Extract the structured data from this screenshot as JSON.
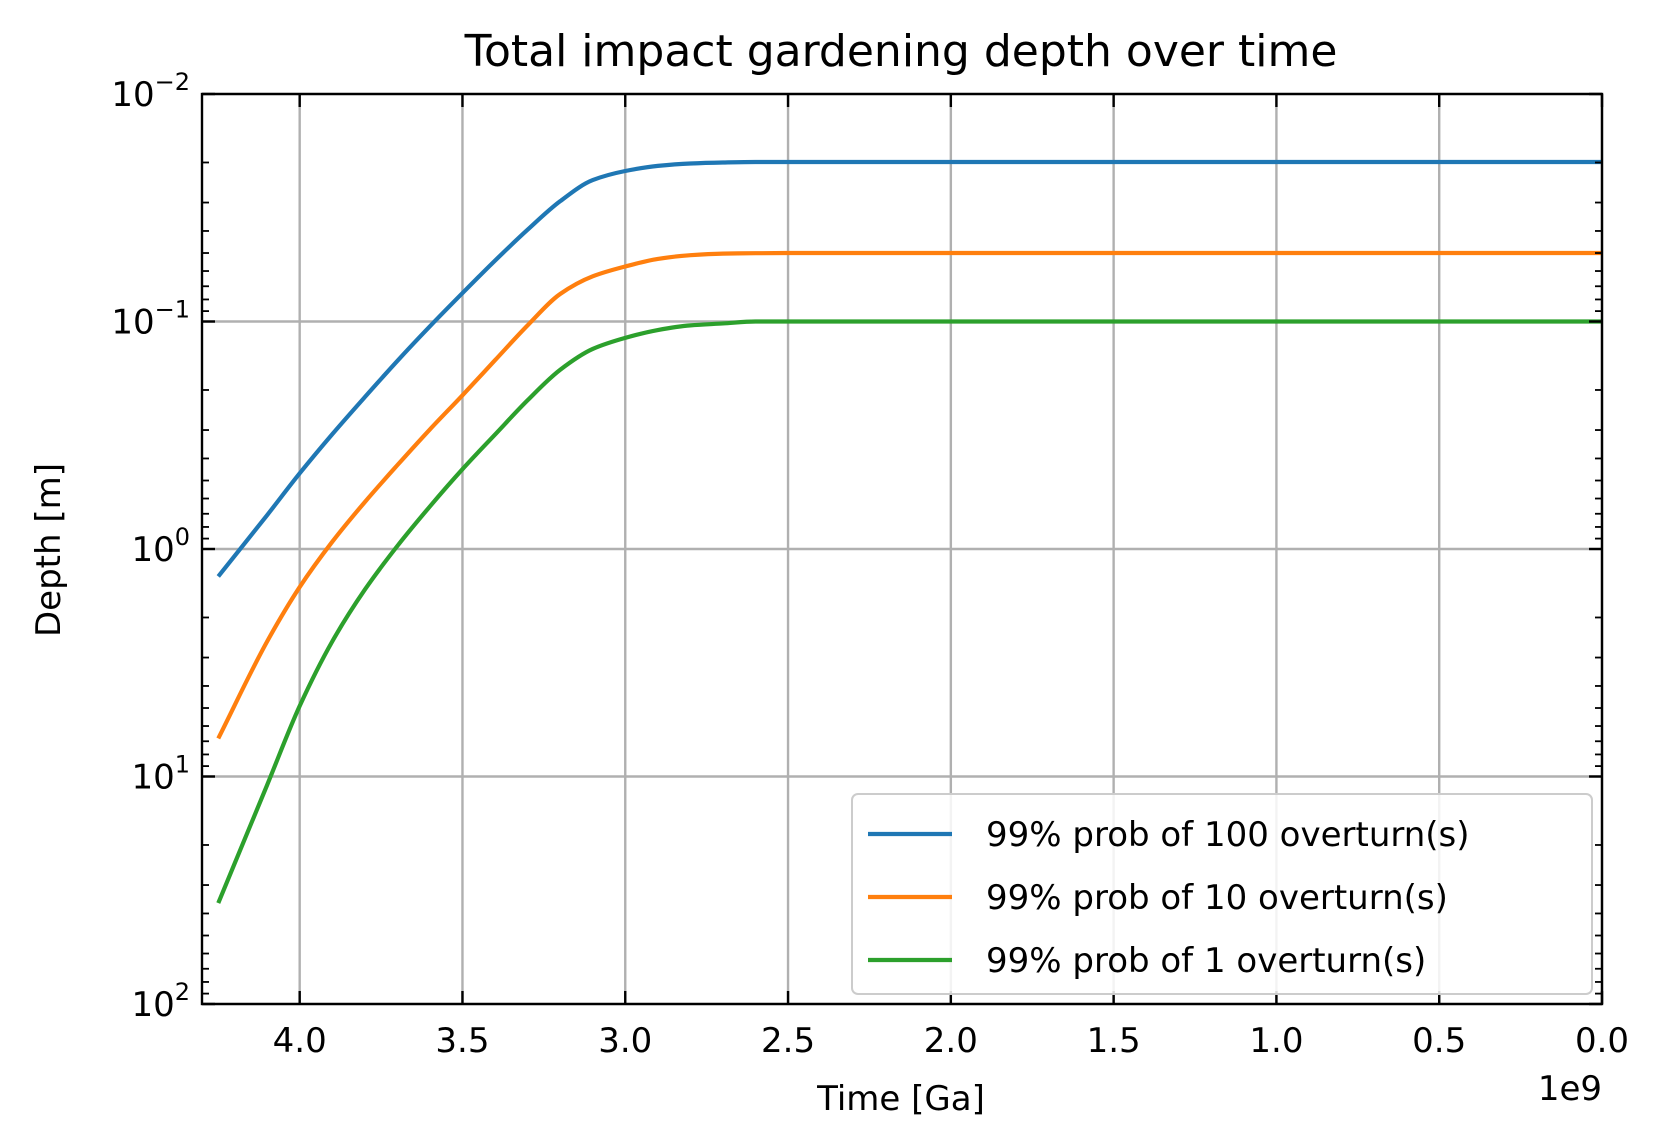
{
  "chart_data": {
    "type": "line",
    "title": "Total impact gardening depth over time",
    "xlabel": "Time [Ga]",
    "ylabel": "Depth [m]",
    "x_offset_text": "1e9",
    "x_scale": "linear",
    "x_inverted": true,
    "xlim": [
      4300000000.0,
      0
    ],
    "x_ticks": [
      {
        "value": 4000000000.0,
        "label": "4.0"
      },
      {
        "value": 3500000000.0,
        "label": "3.5"
      },
      {
        "value": 3000000000.0,
        "label": "3.0"
      },
      {
        "value": 2500000000.0,
        "label": "2.5"
      },
      {
        "value": 2000000000.0,
        "label": "2.0"
      },
      {
        "value": 1500000000.0,
        "label": "1.5"
      },
      {
        "value": 1000000000.0,
        "label": "1.0"
      },
      {
        "value": 500000000.0,
        "label": "0.5"
      },
      {
        "value": 0,
        "label": "0.0"
      }
    ],
    "y_scale": "log",
    "y_inverted": true,
    "ylim": [
      100,
      0.01
    ],
    "y_ticks": [
      {
        "value": 0.01,
        "base": "10",
        "exp": "−2"
      },
      {
        "value": 0.1,
        "base": "10",
        "exp": "−1"
      },
      {
        "value": 1,
        "base": "10",
        "exp": "0"
      },
      {
        "value": 10,
        "base": "10",
        "exp": "1"
      },
      {
        "value": 100,
        "base": "10",
        "exp": "2"
      }
    ],
    "grid": true,
    "legend_position": "lower-right",
    "series": [
      {
        "name": "99% prob of 100 overturn(s)",
        "color": "#1f77b4",
        "x": [
          4250000000.0,
          4100000000.0,
          4000000000.0,
          3900000000.0,
          3800000000.0,
          3700000000.0,
          3600000000.0,
          3500000000.0,
          3400000000.0,
          3300000000.0,
          3200000000.0,
          3100000000.0,
          3000000000.0,
          2900000000.0,
          2800000000.0,
          2700000000.0,
          2600000000.0,
          2500000000.0,
          2000000000.0,
          1000000000.0,
          0
        ],
        "y": [
          1.32,
          0.71,
          0.465,
          0.313,
          0.215,
          0.149,
          0.105,
          0.075,
          0.054,
          0.0395,
          0.0296,
          0.0239,
          0.0218,
          0.0207,
          0.0202,
          0.02,
          0.0199,
          0.0199,
          0.0199,
          0.0199,
          0.0199
        ]
      },
      {
        "name": "99% prob of 10 overturn(s)",
        "color": "#ff7f0e",
        "x": [
          4250000000.0,
          4100000000.0,
          4000000000.0,
          3900000000.0,
          3800000000.0,
          3700000000.0,
          3600000000.0,
          3500000000.0,
          3400000000.0,
          3300000000.0,
          3200000000.0,
          3100000000.0,
          3000000000.0,
          2900000000.0,
          2800000000.0,
          2700000000.0,
          2600000000.0,
          2500000000.0,
          2000000000.0,
          1000000000.0,
          0
        ],
        "y": [
          6.8,
          2.55,
          1.47,
          0.93,
          0.622,
          0.428,
          0.298,
          0.211,
          0.148,
          0.104,
          0.0757,
          0.0633,
          0.0573,
          0.0531,
          0.0511,
          0.0503,
          0.0501,
          0.05,
          0.05,
          0.05,
          0.05
        ]
      },
      {
        "name": "99% prob of 1 overturn(s)",
        "color": "#2ca02c",
        "x": [
          4250000000.0,
          4100000000.0,
          4000000000.0,
          3900000000.0,
          3800000000.0,
          3700000000.0,
          3600000000.0,
          3500000000.0,
          3400000000.0,
          3300000000.0,
          3200000000.0,
          3100000000.0,
          3000000000.0,
          2900000000.0,
          2800000000.0,
          2700000000.0,
          2600000000.0,
          2500000000.0,
          2000000000.0,
          1000000000.0,
          0
        ],
        "y": [
          36.0,
          10.9,
          4.9,
          2.55,
          1.51,
          0.97,
          0.65,
          0.446,
          0.314,
          0.222,
          0.163,
          0.132,
          0.118,
          0.109,
          0.104,
          0.102,
          0.1,
          0.1,
          0.1,
          0.1,
          0.1
        ]
      }
    ]
  }
}
